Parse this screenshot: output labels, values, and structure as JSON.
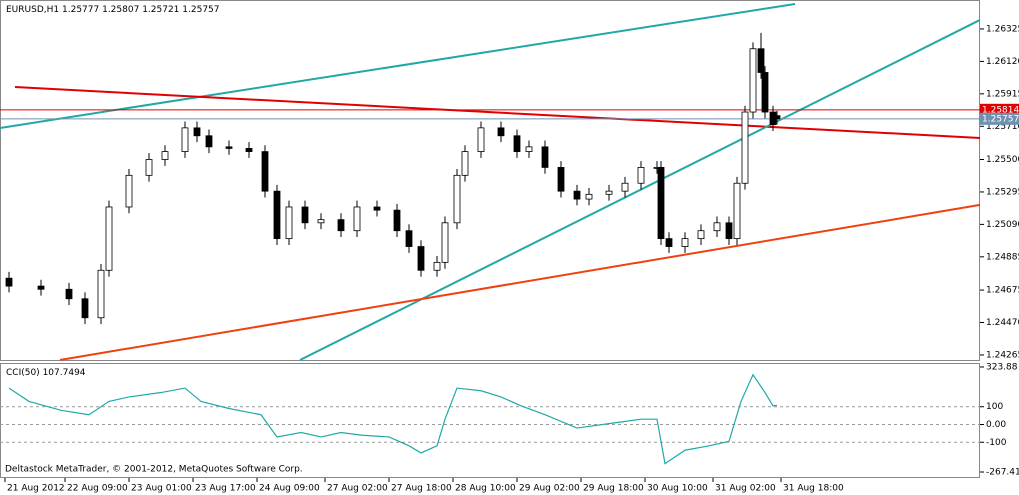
{
  "chart_data": [
    {
      "type": "candlestick",
      "title": "EURUSD,H1",
      "last_ohlc": [
        1.25777,
        1.25807,
        1.25721,
        1.25757
      ],
      "footer": "Deltastock MetaTrader, © 2001-2012, MetaQuotes Software Corp.",
      "x": [
        1,
        9,
        16,
        20,
        24,
        26,
        31,
        36,
        40,
        45,
        48,
        51,
        56,
        61,
        65,
        68,
        71,
        75,
        79,
        84,
        88,
        93,
        98,
        101,
        104,
        108,
        110,
        113,
        115,
        119,
        124,
        128,
        131,
        135,
        139,
        143,
        146,
        151,
        155,
        159,
        163,
        164,
        166,
        170,
        174,
        178,
        181,
        183,
        185,
        187,
        189,
        190,
        192,
        193
      ],
      "open": [
        1.2475,
        1.247,
        1.2468,
        1.2462,
        1.245,
        1.248,
        1.252,
        1.254,
        1.255,
        1.2555,
        1.257,
        1.2565,
        1.2558,
        1.2557,
        1.2555,
        1.253,
        1.25,
        1.252,
        1.251,
        1.2512,
        1.2505,
        1.252,
        1.2518,
        1.2505,
        1.2495,
        1.248,
        1.2485,
        1.251,
        1.254,
        1.2555,
        1.257,
        1.2565,
        1.2555,
        1.2558,
        1.2545,
        1.253,
        1.2525,
        1.2528,
        1.253,
        1.2535,
        1.2545,
        1.2545,
        1.25,
        1.2495,
        1.25,
        1.2505,
        1.251,
        1.25,
        1.2535,
        1.258,
        1.262,
        1.2605,
        1.258,
        1.25777
      ],
      "high": [
        1.2479,
        1.2474,
        1.2472,
        1.2466,
        1.2484,
        1.2524,
        1.2544,
        1.2554,
        1.2559,
        1.2574,
        1.2574,
        1.2569,
        1.2562,
        1.2561,
        1.2559,
        1.2534,
        1.2524,
        1.2524,
        1.2516,
        1.2516,
        1.2524,
        1.2524,
        1.2522,
        1.2509,
        1.2499,
        1.2489,
        1.2514,
        1.2544,
        1.2559,
        1.2574,
        1.2574,
        1.2569,
        1.2562,
        1.2562,
        1.2549,
        1.2534,
        1.2532,
        1.2534,
        1.2539,
        1.2549,
        1.2549,
        1.2549,
        1.2504,
        1.2504,
        1.2509,
        1.2514,
        1.2514,
        1.2539,
        1.2584,
        1.2624,
        1.263,
        1.2609,
        1.2584,
        1.25807
      ],
      "low": [
        1.2466,
        1.2464,
        1.2458,
        1.2446,
        1.2446,
        1.2476,
        1.2516,
        1.2536,
        1.2546,
        1.2551,
        1.2561,
        1.2554,
        1.2553,
        1.2551,
        1.2526,
        1.2496,
        1.2496,
        1.2506,
        1.2506,
        1.2501,
        1.2501,
        1.2514,
        1.2501,
        1.2491,
        1.2476,
        1.2476,
        1.2481,
        1.2506,
        1.2536,
        1.2551,
        1.2561,
        1.2551,
        1.2551,
        1.2541,
        1.2526,
        1.2521,
        1.2521,
        1.2524,
        1.2526,
        1.2531,
        1.2541,
        1.2496,
        1.2491,
        1.2491,
        1.2496,
        1.2501,
        1.2496,
        1.2496,
        1.2531,
        1.2576,
        1.2601,
        1.2576,
        1.2568,
        1.25721
      ],
      "close": [
        1.247,
        1.2468,
        1.2462,
        1.245,
        1.248,
        1.252,
        1.254,
        1.255,
        1.2555,
        1.257,
        1.2565,
        1.2558,
        1.2557,
        1.2555,
        1.253,
        1.25,
        1.252,
        1.251,
        1.2512,
        1.2505,
        1.252,
        1.2518,
        1.2505,
        1.2495,
        1.248,
        1.2485,
        1.251,
        1.254,
        1.2555,
        1.257,
        1.2565,
        1.2555,
        1.2558,
        1.2545,
        1.253,
        1.2525,
        1.2528,
        1.253,
        1.2535,
        1.2545,
        1.2545,
        1.25,
        1.2495,
        1.25,
        1.2505,
        1.251,
        1.25,
        1.2535,
        1.258,
        1.262,
        1.2605,
        1.258,
        1.2572,
        1.25757
      ],
      "trendlines": [
        {
          "x": [
            -1.25,
            197.5
          ],
          "y": [
            1.25699,
            1.26483
          ],
          "color": "#20a8a8"
        },
        {
          "x": [
            2.5,
            243.75
          ],
          "y": [
            1.25958,
            1.25636
          ],
          "color": "#e00000"
        },
        {
          "x": [
            73.75,
            243.75
          ],
          "y": [
            1.24233,
            1.26382
          ],
          "color": "#20a8a8"
        },
        {
          "x": [
            13.75,
            243.75
          ],
          "y": [
            1.24233,
            1.25213
          ],
          "color": "#f04010"
        }
      ],
      "price_lines": [
        {
          "value": 1.25814,
          "color": "#e00000"
        },
        {
          "value": 1.25757,
          "color": "#7090b0"
        }
      ],
      "xlim": [
        -1.25,
        243.75
      ],
      "ylim": [
        1.24233,
        1.26508
      ],
      "yticks": [
        1.26325,
        {
          "value": 1.2612,
          "label": "1.26120"
        },
        1.25915,
        {
          "value": 1.2571,
          "label": "1.25710"
        },
        {
          "value": 1.255,
          "label": "1.25500"
        },
        1.25295,
        {
          "value": 1.2509,
          "label": "1.25090"
        },
        1.24885,
        1.24675,
        {
          "value": 1.2447,
          "label": "1.24470"
        },
        1.24265
      ],
      "xticks": [
        {
          "value": 0,
          "label": "21 Aug 2012"
        },
        {
          "value": 15,
          "label": "22 Aug 09:00"
        },
        {
          "value": 31,
          "label": "23 Aug 01:00"
        },
        {
          "value": 47,
          "label": "23 Aug 17:00"
        },
        {
          "value": 63,
          "label": "24 Aug 09:00"
        },
        {
          "value": 80,
          "label": "27 Aug 02:00"
        },
        {
          "value": 96,
          "label": "27 Aug 18:00"
        },
        {
          "value": 112,
          "label": "28 Aug 10:00"
        },
        {
          "value": 128,
          "label": "29 Aug 02:00"
        },
        {
          "value": 144,
          "label": "29 Aug 18:00"
        },
        {
          "value": 160,
          "label": "30 Aug 10:00"
        },
        {
          "value": 177,
          "label": "31 Aug 02:00"
        },
        {
          "value": 194,
          "label": "31 Aug 18:00"
        }
      ]
    },
    {
      "type": "line",
      "title": "CCI(50)",
      "last_value": 107.7494,
      "color": "#20a8a8",
      "x": [
        1,
        6,
        14,
        21,
        26,
        31,
        39,
        45,
        49,
        56,
        64,
        68,
        74,
        79,
        84,
        89,
        96,
        101,
        104,
        108,
        110,
        113,
        119,
        124,
        129,
        135,
        143,
        151,
        159,
        163,
        165,
        170,
        176,
        181,
        184,
        187,
        190,
        192,
        193
      ],
      "values": [
        205,
        130,
        80,
        55,
        130,
        155,
        180,
        205,
        130,
        90,
        55,
        -70,
        -45,
        -70,
        -45,
        -60,
        -70,
        -120,
        -160,
        -120,
        30,
        205,
        190,
        155,
        105,
        55,
        -20,
        5,
        30,
        30,
        -220,
        -145,
        -120,
        -95,
        130,
        280,
        180,
        105,
        107.7494
      ],
      "xlim": [
        -1.25,
        243.75
      ],
      "ylim": [
        -290,
        335
      ],
      "yticks": [
        323.88,
        100,
        {
          "value": 0,
          "label": "0.00"
        },
        -100,
        -267.41
      ],
      "levels": [
        100,
        0,
        -100
      ]
    }
  ]
}
